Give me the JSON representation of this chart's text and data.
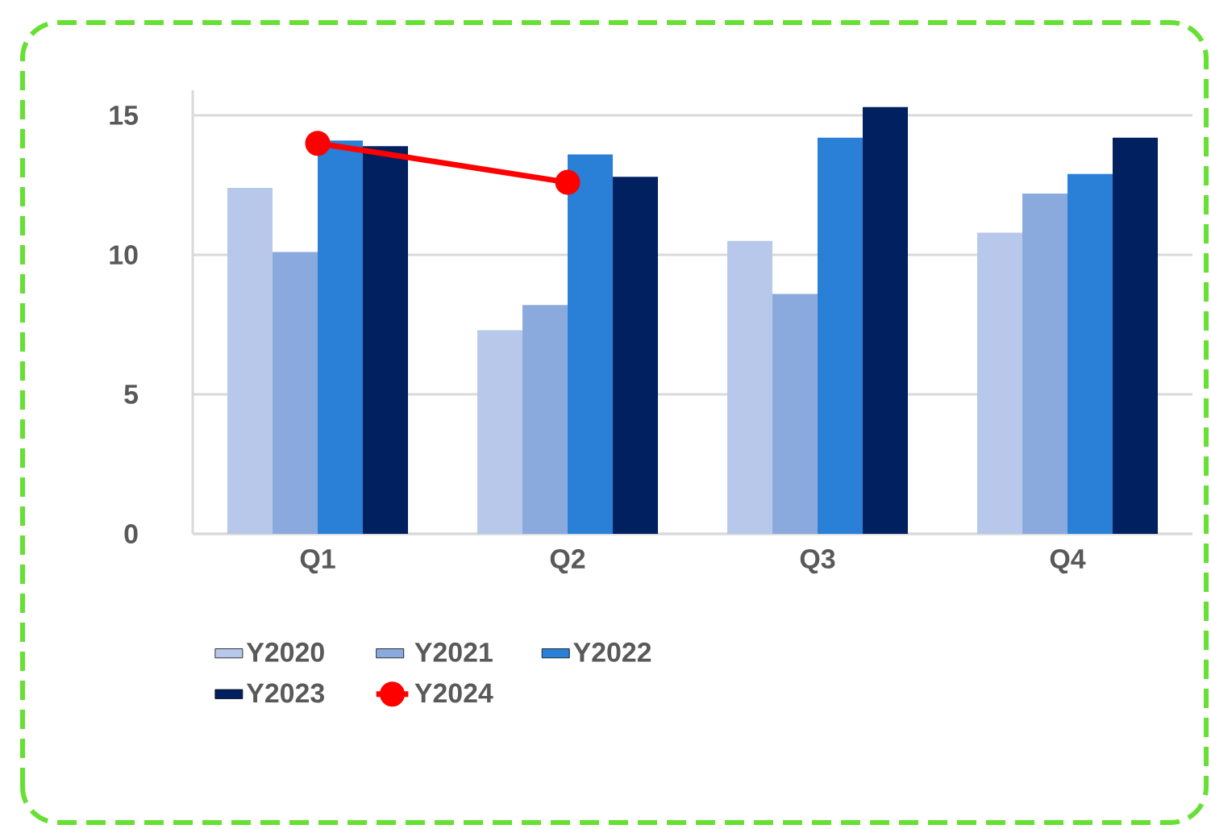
{
  "chart_data": {
    "type": "bar",
    "categories": [
      "Q1",
      "Q2",
      "Q3",
      "Q4"
    ],
    "series": [
      {
        "name": "Y2020",
        "color": "#b8c8ea",
        "values": [
          12.4,
          7.3,
          10.5,
          10.8
        ]
      },
      {
        "name": "Y2021",
        "color": "#8aaade",
        "values": [
          10.1,
          8.2,
          8.6,
          12.2
        ]
      },
      {
        "name": "Y2022",
        "color": "#2a7fd6",
        "values": [
          14.1,
          13.6,
          14.2,
          12.9
        ]
      },
      {
        "name": "Y2023",
        "color": "#00205f",
        "values": [
          13.9,
          12.8,
          15.3,
          14.2
        ]
      },
      {
        "name": "Y2024",
        "color": "#ff0000",
        "type": "line",
        "marker": "circle",
        "values": [
          14.0,
          12.6,
          null,
          null
        ]
      }
    ],
    "ylim": [
      0,
      15.9
    ],
    "yticks": [
      0,
      5,
      10,
      15
    ],
    "grid": "y",
    "legend": "bottom"
  }
}
